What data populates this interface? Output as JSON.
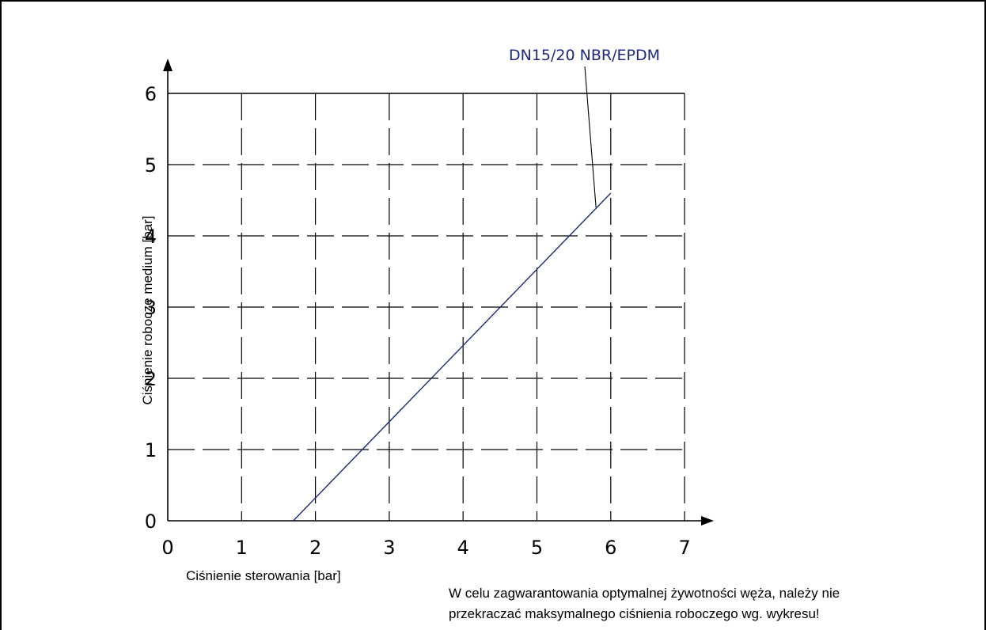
{
  "chart_data": {
    "type": "line",
    "title": "",
    "xlabel": "Ciśnienie sterowania [bar]",
    "ylabel": "Ciśnienie robocze medium [bar]",
    "xlim": [
      0,
      7
    ],
    "ylim": [
      0,
      6
    ],
    "x_ticks": [
      "0",
      "1",
      "2",
      "3",
      "4",
      "5",
      "6",
      "7"
    ],
    "y_ticks": [
      "0",
      "1",
      "2",
      "3",
      "4",
      "5",
      "6"
    ],
    "grid": true,
    "grid_style": "dashed",
    "series": [
      {
        "name": "DN15/20 NBR/EPDM",
        "color": "#1c2a7a",
        "x": [
          1.7,
          6.0
        ],
        "y": [
          0,
          4.6
        ]
      }
    ]
  },
  "note": {
    "line1": "W celu zagwarantowania optymalnej żywotności węża, należy nie",
    "line2": "przekraczać maksymalnego ciśnienia roboczego wg. wykresu!"
  }
}
